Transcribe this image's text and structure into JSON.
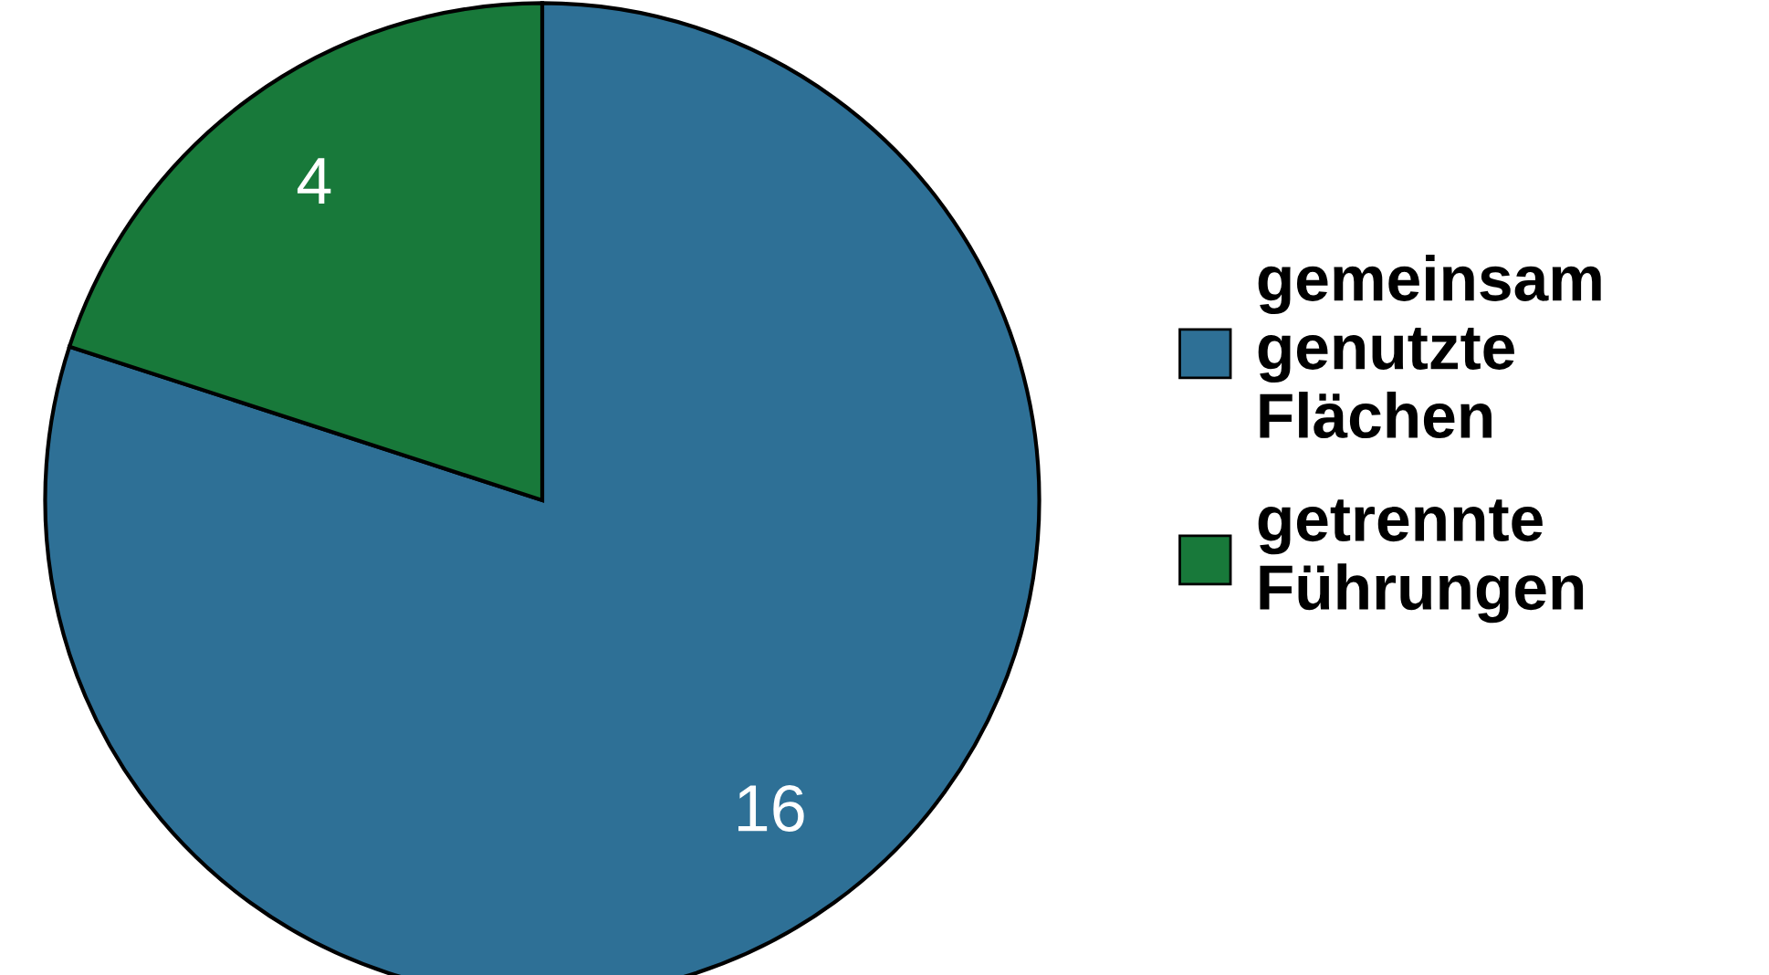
{
  "chart_data": {
    "type": "pie",
    "categories": [
      "gemeinsam\ngenutzte\nFlächen",
      "getrennte\nFührungen"
    ],
    "values": [
      16,
      4
    ],
    "colors": [
      "#2e7096",
      "#18793a"
    ],
    "data_labels": true,
    "legend": "right"
  }
}
